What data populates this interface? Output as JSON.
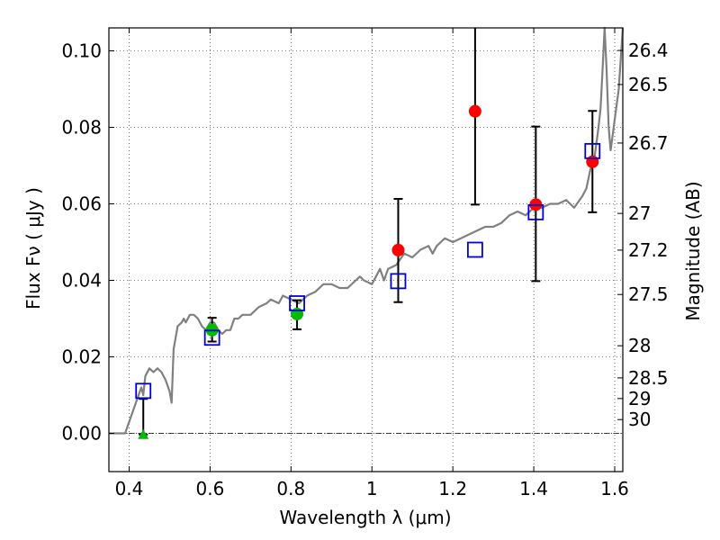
{
  "chart_data": {
    "type": "scatter",
    "xlabel": "Wavelength  λ (μm)",
    "ylabel": "Flux  Fν  ( μJy )",
    "y2label": "Magnitude (AB)",
    "xlim": [
      0.35,
      1.62
    ],
    "ylim": [
      -0.01,
      0.106
    ],
    "x_ticks": [
      0.4,
      0.6,
      0.8,
      1.0,
      1.2,
      1.4,
      1.6
    ],
    "x_tick_labels": [
      "0.4",
      "0.6",
      "0.8",
      "1",
      "1.2",
      "1.4",
      "1.6"
    ],
    "y_ticks": [
      0.0,
      0.02,
      0.04,
      0.06,
      0.08,
      0.1
    ],
    "y_tick_labels": [
      "0.00",
      "0.02",
      "0.04",
      "0.06",
      "0.08",
      "0.10"
    ],
    "mag_ticks": [
      {
        "label": "26.4",
        "flux": 0.1001
      },
      {
        "label": "26.5",
        "flux": 0.0912
      },
      {
        "label": "26.7",
        "flux": 0.0759
      },
      {
        "label": "27",
        "flux": 0.0575
      },
      {
        "label": "27.2",
        "flux": 0.0479
      },
      {
        "label": "27.5",
        "flux": 0.0363
      },
      {
        "label": "28",
        "flux": 0.0229
      },
      {
        "label": "28.5",
        "flux": 0.0145
      },
      {
        "label": "29",
        "flux": 0.0091
      },
      {
        "label": "30",
        "flux": 0.0036
      }
    ],
    "grid": true,
    "colors": {
      "model": "#808080",
      "observed_red": "#ff0000",
      "observed_green": "#00bb00",
      "model_photometry": "#0000dd",
      "errorbar": "#000000",
      "zero_line": "#000000"
    },
    "series": [
      {
        "name": "model-spectrum",
        "kind": "line",
        "x": [
          0.35,
          0.37,
          0.39,
          0.41,
          0.42,
          0.43,
          0.435,
          0.44,
          0.45,
          0.46,
          0.47,
          0.48,
          0.49,
          0.5,
          0.505,
          0.51,
          0.52,
          0.53,
          0.535,
          0.54,
          0.55,
          0.56,
          0.57,
          0.58,
          0.59,
          0.6,
          0.61,
          0.62,
          0.63,
          0.64,
          0.65,
          0.66,
          0.67,
          0.68,
          0.7,
          0.72,
          0.74,
          0.75,
          0.77,
          0.78,
          0.8,
          0.82,
          0.84,
          0.86,
          0.87,
          0.88,
          0.9,
          0.92,
          0.94,
          0.96,
          0.97,
          0.98,
          1.0,
          1.02,
          1.03,
          1.04,
          1.06,
          1.08,
          1.1,
          1.12,
          1.14,
          1.15,
          1.16,
          1.18,
          1.2,
          1.22,
          1.24,
          1.26,
          1.28,
          1.3,
          1.32,
          1.34,
          1.36,
          1.38,
          1.4,
          1.42,
          1.44,
          1.46,
          1.48,
          1.5,
          1.52,
          1.53,
          1.54,
          1.55,
          1.56,
          1.565,
          1.57,
          1.575,
          1.58,
          1.585,
          1.59,
          1.6,
          1.61,
          1.62
        ],
        "y": [
          0.0,
          0.0,
          0.0,
          0.006,
          0.009,
          0.012,
          0.01,
          0.015,
          0.017,
          0.016,
          0.017,
          0.016,
          0.014,
          0.011,
          0.008,
          0.022,
          0.028,
          0.029,
          0.03,
          0.029,
          0.031,
          0.031,
          0.03,
          0.028,
          0.027,
          0.029,
          0.029,
          0.027,
          0.026,
          0.027,
          0.027,
          0.03,
          0.03,
          0.031,
          0.031,
          0.033,
          0.034,
          0.035,
          0.034,
          0.036,
          0.035,
          0.034,
          0.036,
          0.037,
          0.038,
          0.039,
          0.039,
          0.038,
          0.038,
          0.04,
          0.041,
          0.04,
          0.039,
          0.043,
          0.04,
          0.043,
          0.044,
          0.047,
          0.046,
          0.048,
          0.049,
          0.047,
          0.049,
          0.051,
          0.05,
          0.051,
          0.052,
          0.053,
          0.054,
          0.054,
          0.055,
          0.057,
          0.058,
          0.057,
          0.059,
          0.059,
          0.06,
          0.06,
          0.061,
          0.059,
          0.062,
          0.064,
          0.069,
          0.072,
          0.08,
          0.085,
          0.095,
          0.106,
          0.095,
          0.08,
          0.074,
          0.082,
          0.09,
          0.106
        ]
      },
      {
        "name": "observed-red",
        "kind": "points",
        "marker": "circle",
        "x": [
          1.065,
          1.255,
          1.405,
          1.545
        ],
        "y": [
          0.0479,
          0.0842,
          0.0598,
          0.071
        ],
        "yerr_low": [
          0.0343,
          0.0598,
          0.0398,
          0.0578
        ],
        "yerr_high": [
          0.0613,
          0.106,
          0.0802,
          0.0843
        ]
      },
      {
        "name": "observed-green",
        "kind": "points",
        "marker": "circle",
        "x": [
          0.605,
          0.815
        ],
        "y": [
          0.027,
          0.0312
        ],
        "yerr_low": [
          0.024,
          0.0272
        ],
        "yerr_high": [
          0.0302,
          0.0348
        ]
      },
      {
        "name": "observed-upper-limit",
        "kind": "points",
        "marker": "triangle",
        "x": [
          0.435
        ],
        "y": [
          -0.0003
        ],
        "yerr_low": [
          -0.0003
        ],
        "yerr_high": [
          0.009
        ]
      },
      {
        "name": "model-photometry",
        "kind": "points",
        "marker": "open-square",
        "x": [
          0.435,
          0.605,
          0.815,
          1.065,
          1.255,
          1.405,
          1.545
        ],
        "y": [
          0.0111,
          0.025,
          0.034,
          0.0398,
          0.048,
          0.0578,
          0.0738
        ]
      }
    ]
  }
}
